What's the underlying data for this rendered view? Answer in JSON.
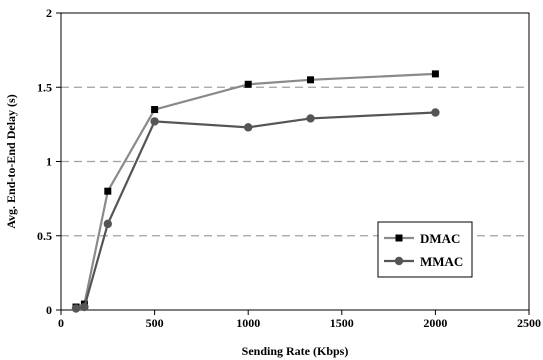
{
  "chart_data": {
    "type": "line",
    "title": "",
    "xlabel": "Sending Rate (Kbps)",
    "ylabel": "Avg. End-to-End Delay (s)",
    "xlim": [
      0,
      2500
    ],
    "ylim": [
      0,
      2
    ],
    "xticks": [
      0,
      500,
      1000,
      1500,
      2000,
      2500
    ],
    "yticks": [
      0,
      0.5,
      1,
      1.5,
      2
    ],
    "xtick_labels": [
      "0",
      "500",
      "1000",
      "1500",
      "2000",
      "2500"
    ],
    "ytick_labels": [
      "0",
      "0.5",
      "1",
      "1.5",
      "2"
    ],
    "grid": "horizontal dashed",
    "legend_position": "bottom-right",
    "series": [
      {
        "name": "DMAC",
        "marker": "square",
        "color": "#8a8a8a",
        "marker_color": "#000000",
        "x": [
          80,
          125,
          250,
          500,
          1000,
          1333,
          2000
        ],
        "y": [
          0.02,
          0.04,
          0.8,
          1.35,
          1.52,
          1.55,
          1.59
        ]
      },
      {
        "name": "MMAC",
        "marker": "circle",
        "color": "#555555",
        "marker_color": "#555555",
        "x": [
          80,
          125,
          250,
          500,
          1000,
          1333,
          2000
        ],
        "y": [
          0.01,
          0.02,
          0.58,
          1.27,
          1.23,
          1.29,
          1.33
        ]
      }
    ]
  }
}
